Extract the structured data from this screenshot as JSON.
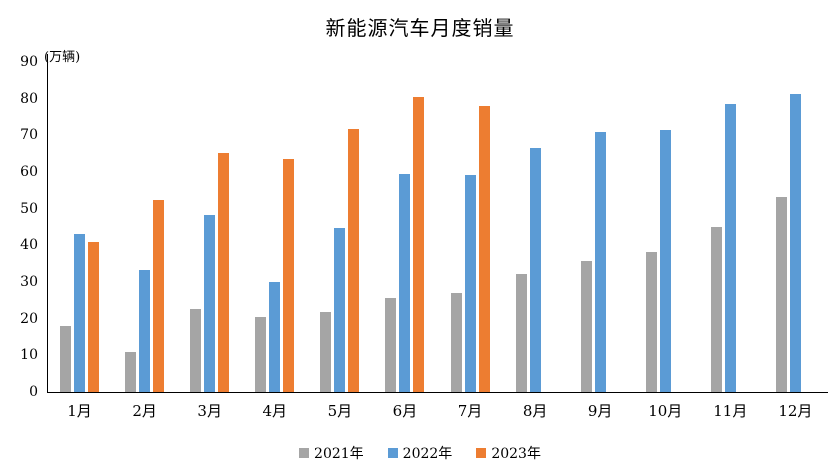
{
  "page": {
    "background": "#ffffff",
    "text_color": "#000000",
    "axis_color": "#000000"
  },
  "chart_data": {
    "type": "bar",
    "title": "新能源汽车月度销量",
    "unit_label": "(万辆)",
    "categories": [
      "1月",
      "2月",
      "3月",
      "4月",
      "5月",
      "6月",
      "7月",
      "8月",
      "9月",
      "10月",
      "11月",
      "12月"
    ],
    "series": [
      {
        "name": "2021年",
        "color": "#A5A5A5",
        "values": [
          17.9,
          11.0,
          22.6,
          20.6,
          21.7,
          25.6,
          27.1,
          32.1,
          35.7,
          38.3,
          45.0,
          53.1
        ]
      },
      {
        "name": "2022年",
        "color": "#5B9BD5",
        "values": [
          43.1,
          33.4,
          48.4,
          29.9,
          44.7,
          59.6,
          59.3,
          66.6,
          70.8,
          71.4,
          78.6,
          81.4
        ]
      },
      {
        "name": "2023年",
        "color": "#ED7D31",
        "values": [
          40.8,
          52.5,
          65.3,
          63.6,
          71.7,
          80.6,
          78.0,
          null,
          null,
          null,
          null,
          null
        ]
      }
    ],
    "ylim": [
      0,
      90
    ],
    "yticks": [
      0,
      10,
      20,
      30,
      40,
      50,
      60,
      70,
      80,
      90
    ],
    "grid": false,
    "legend_position": "bottom"
  }
}
